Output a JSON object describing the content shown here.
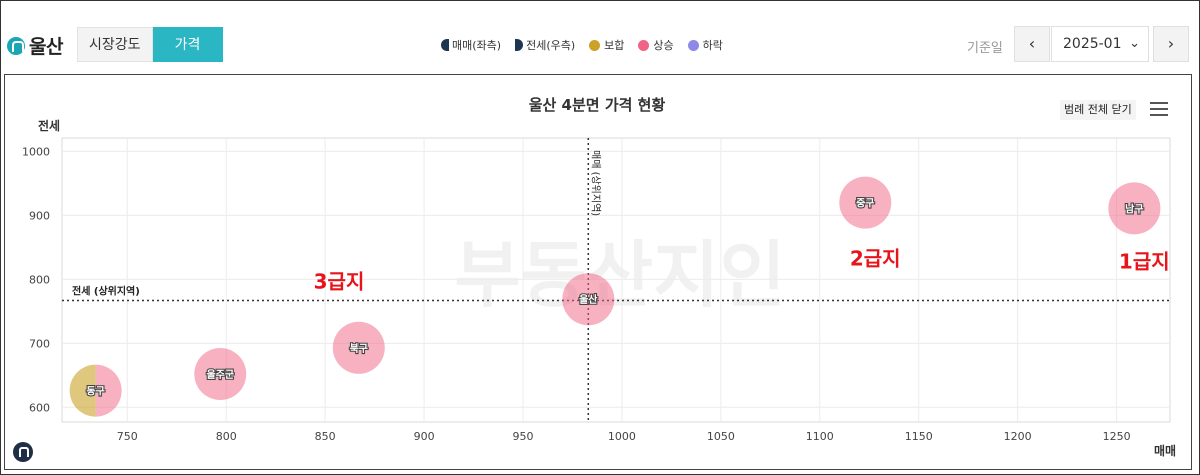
{
  "header": {
    "brand": "울산",
    "tabs": [
      {
        "label": "시장강도",
        "active": false
      },
      {
        "label": "가격",
        "active": true
      }
    ],
    "legend": [
      {
        "label": "매매(좌측)",
        "icon": "half-circle-left",
        "color": "#1f3650"
      },
      {
        "label": "전세(우측)",
        "icon": "half-circle-right",
        "color": "#1f3650"
      },
      {
        "label": "보합",
        "icon": "dot",
        "color": "#c9a227"
      },
      {
        "label": "상승",
        "icon": "dot",
        "color": "#f06384"
      },
      {
        "label": "하락",
        "icon": "dot",
        "color": "#8e88e6"
      }
    ],
    "date_label": "기준일",
    "date_value": "2025-01",
    "prev_icon": "chevron-left-icon",
    "next_icon": "chevron-right-icon"
  },
  "chart_controls": {
    "legend_toggle_label": "범례 전체 닫기",
    "menu_icon": "hamburger-menu-icon"
  },
  "chart_data": {
    "type": "scatter",
    "title": "울산 4분면 가격 현황",
    "xlabel": "매매",
    "ylabel": "전세",
    "xlim": [
      717,
      1277
    ],
    "ylim": [
      577,
      1021
    ],
    "xticks": [
      750,
      800,
      850,
      900,
      950,
      1000,
      1050,
      1100,
      1150,
      1200,
      1250
    ],
    "yticks": [
      600,
      700,
      800,
      900,
      1000
    ],
    "grid": true,
    "reference_lines": [
      {
        "axis": "x",
        "value": 983,
        "label": "매매 (상위지역)"
      },
      {
        "axis": "y",
        "value": 767,
        "label": "전세 (상위지역)"
      }
    ],
    "points": [
      {
        "name": "동구",
        "x": 734,
        "y": 626,
        "status": "보합"
      },
      {
        "name": "울주군",
        "x": 797,
        "y": 652,
        "status": "상승"
      },
      {
        "name": "북구",
        "x": 867,
        "y": 693,
        "status": "상승"
      },
      {
        "name": "울산",
        "x": 983,
        "y": 769,
        "status": "상승"
      },
      {
        "name": "중구",
        "x": 1123,
        "y": 920,
        "status": "상승"
      },
      {
        "name": "남구",
        "x": 1259,
        "y": 911,
        "status": "상승"
      }
    ],
    "annotations": [
      {
        "text": "3급지",
        "x": 857,
        "y": 786
      },
      {
        "text": "2급지",
        "x": 1128,
        "y": 822
      },
      {
        "text": "1급지",
        "x": 1264,
        "y": 817
      }
    ],
    "watermark": "부동산지인",
    "colors": {
      "보합": "#c9a227",
      "상승": "#f06384",
      "하락": "#8e88e6",
      "annotation": "#e8141b"
    }
  }
}
